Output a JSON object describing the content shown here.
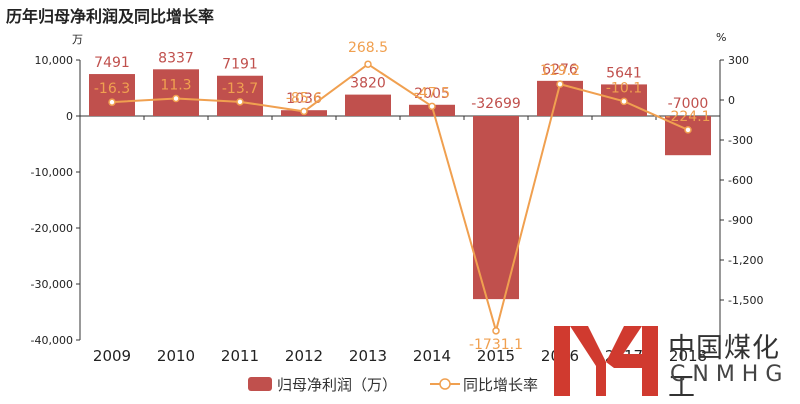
{
  "title": "历年归母净利润及同比增长率",
  "left_unit": "万",
  "right_unit": "%",
  "legend": {
    "profit": "归母净利润（万）",
    "growth": "同比增长率"
  },
  "watermark": {
    "cn": "中国煤化工",
    "en": "CNMHG"
  },
  "colors": {
    "bar": "#c0504d",
    "line": "#f0a050",
    "axis": "#333333"
  },
  "chart_data": {
    "type": "bar",
    "categories": [
      "2009",
      "2010",
      "2011",
      "2012",
      "2013",
      "2014",
      "2015",
      "2016",
      "2017",
      "2018"
    ],
    "series": [
      {
        "name": "归母净利润（万）",
        "type": "bar",
        "axis": "left",
        "values": [
          7491,
          8337,
          7191,
          1036,
          3820,
          2005,
          -32699,
          6276,
          5641,
          -7000
        ],
        "labels": [
          "7491",
          "8337",
          "7191",
          "1036",
          "3820",
          "2005",
          "-32699",
          "6276",
          "5641",
          "-7000"
        ]
      },
      {
        "name": "同比增长率",
        "type": "line",
        "axis": "right",
        "values": [
          -16.3,
          11.3,
          -13.7,
          -85.6,
          268.5,
          -47.5,
          -1731.1,
          119.2,
          -10.1,
          -224.1
        ],
        "labels": [
          "-16.3",
          "11.3",
          "-13.7",
          "-85.6",
          "268.5",
          "-47.5",
          "-1731.1",
          "119.2",
          "-10.1",
          "-224.1"
        ]
      }
    ],
    "y_left": {
      "range": [
        -40000,
        10000
      ],
      "ticks": [
        10000,
        0,
        -10000,
        -20000,
        -30000,
        -40000
      ],
      "tick_labels": [
        "10,000",
        "0",
        "-10,000",
        "-20,000",
        "-30,000",
        "-40,000"
      ]
    },
    "y_right": {
      "range": [
        -1800,
        300
      ],
      "ticks": [
        300,
        0,
        -300,
        -600,
        -900,
        -1200,
        -1500
      ],
      "tick_labels": [
        "300",
        "0",
        "-300",
        "-600",
        "-900",
        "-1,200",
        "-1,500"
      ]
    },
    "grid": false,
    "legend_position": "bottom"
  }
}
